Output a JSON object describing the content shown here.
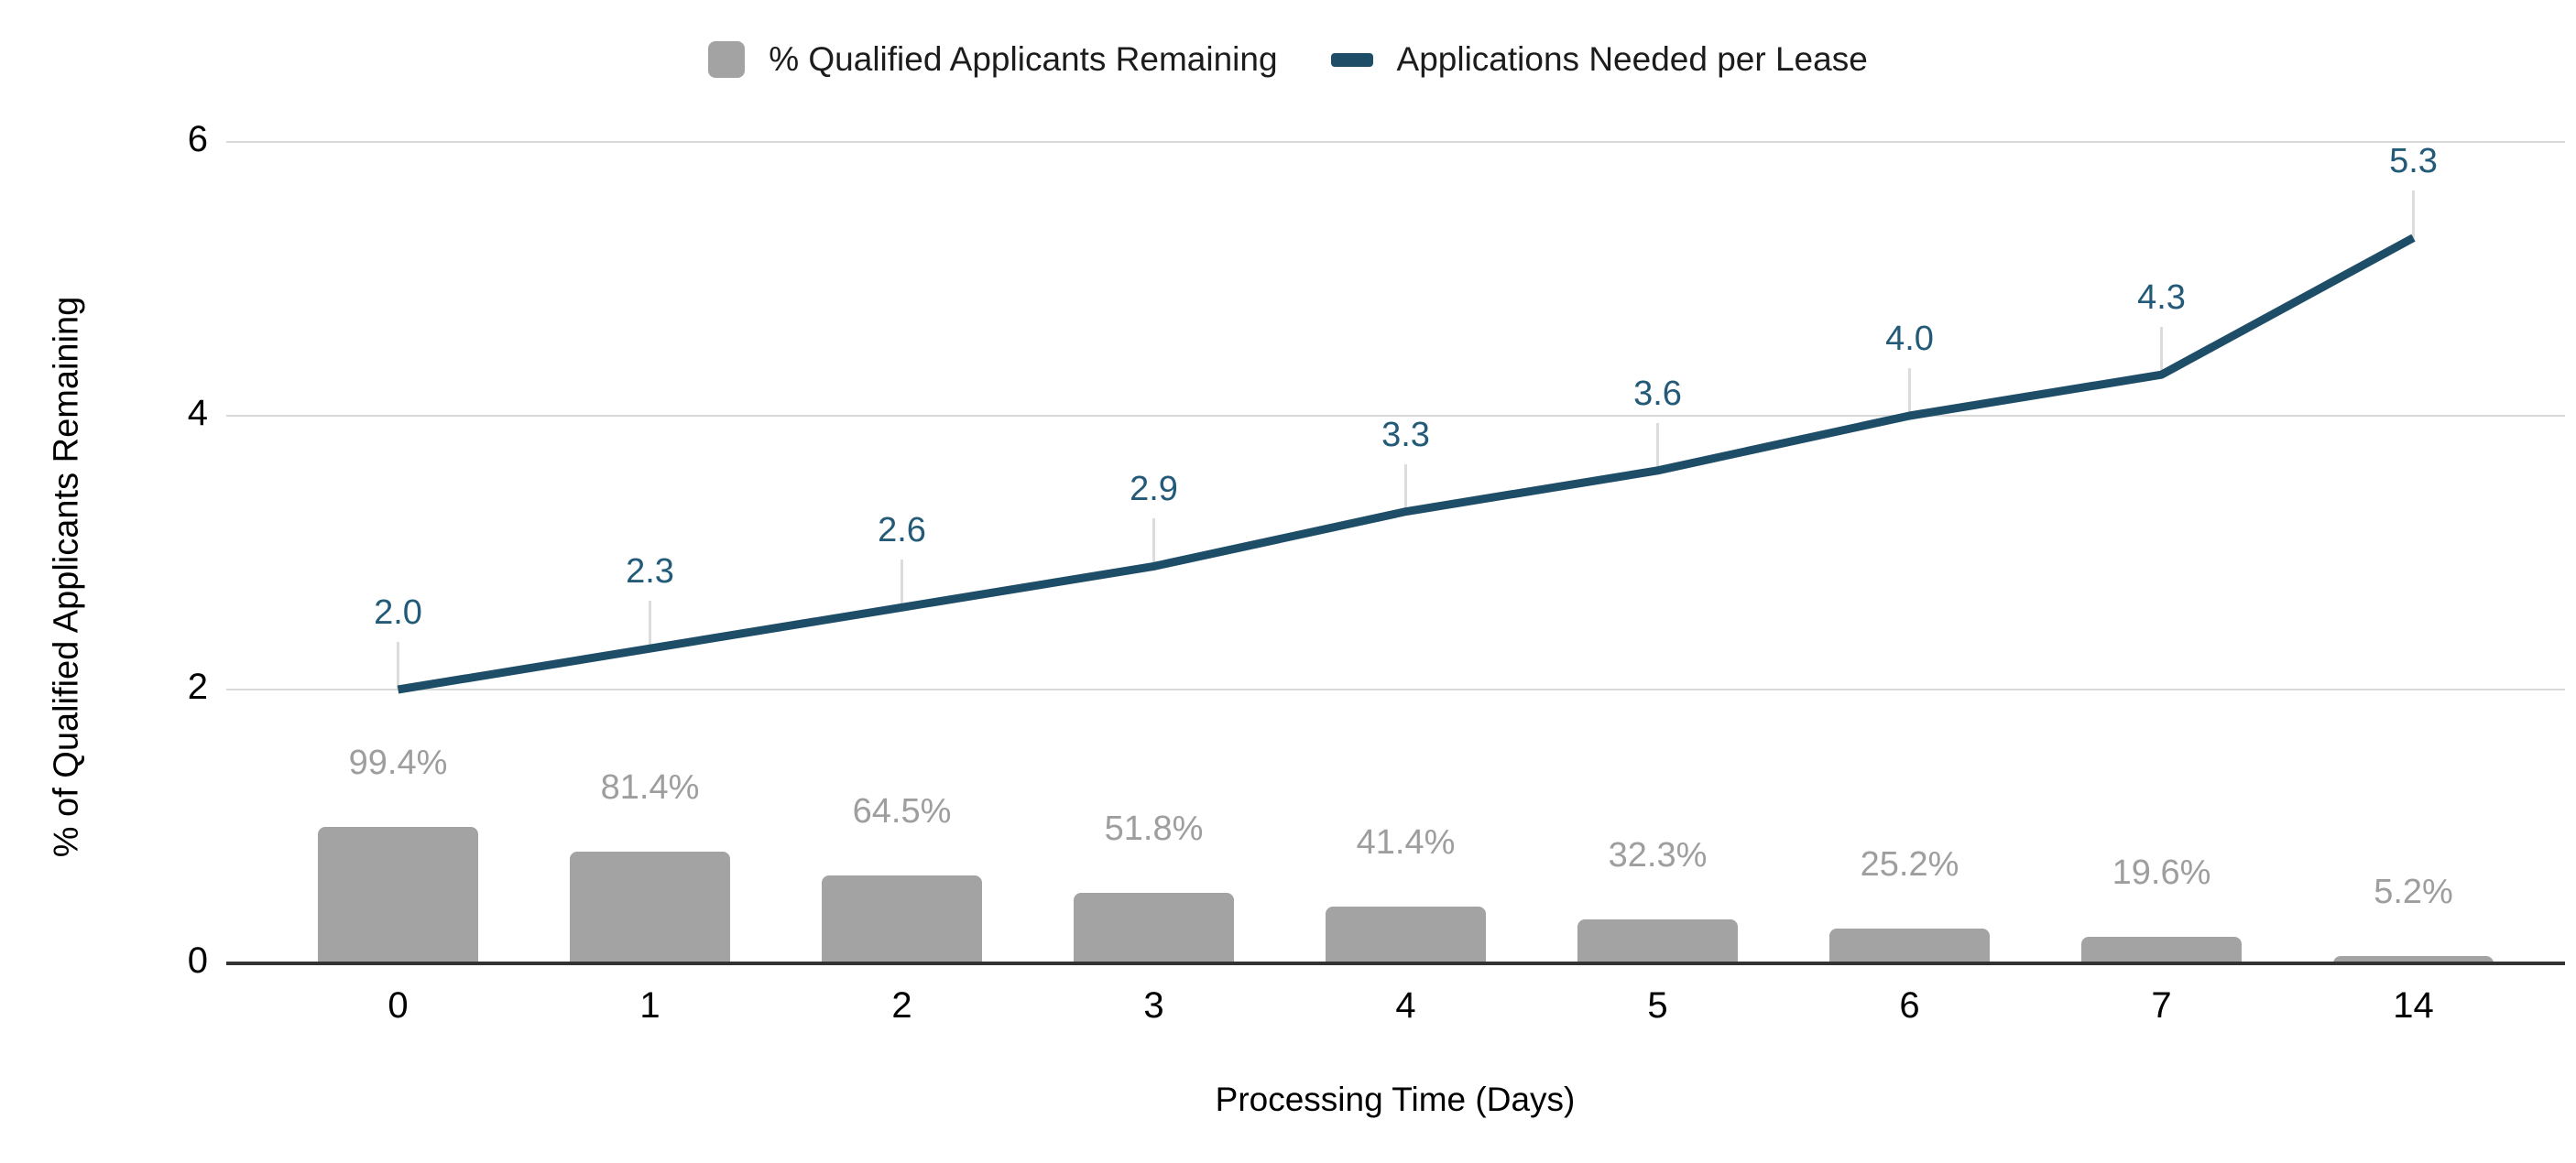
{
  "legend": {
    "items": [
      {
        "label": "% Qualified Applicants Remaining",
        "swatch": "bar-swatch-icon",
        "color": "#a3a3a3"
      },
      {
        "label": "Applications Needed per Lease",
        "swatch": "line-swatch-icon",
        "color": "#1e4d68"
      }
    ]
  },
  "chart_data": {
    "type": "bar",
    "categories": [
      "0",
      "1",
      "2",
      "3",
      "4",
      "5",
      "6",
      "7",
      "14"
    ],
    "series": [
      {
        "name": "% Qualified Applicants Remaining",
        "type": "bar",
        "values": [
          99.4,
          81.4,
          64.5,
          51.8,
          41.4,
          32.3,
          25.2,
          19.6,
          5.2
        ],
        "value_labels": [
          "99.4%",
          "81.4%",
          "64.5%",
          "51.8%",
          "41.4%",
          "32.3%",
          "25.2%",
          "19.6%",
          "5.2%"
        ],
        "plotted_as": "percent value divided by 100 on the 0-6 axis",
        "color": "#a3a3a3",
        "label_color": "#9e9e9e"
      },
      {
        "name": "Applications Needed per Lease",
        "type": "line",
        "values": [
          2.0,
          2.3,
          2.6,
          2.9,
          3.3,
          3.6,
          4.0,
          4.3,
          5.3
        ],
        "value_labels": [
          "2.0",
          "2.3",
          "2.6",
          "2.9",
          "3.3",
          "3.6",
          "4.0",
          "4.3",
          "5.3"
        ],
        "color": "#1e4d68",
        "label_color": "#235a78"
      }
    ],
    "title": "",
    "xlabel": "Processing Time (Days)",
    "ylabel": "% of Qualified Applicants Remaining",
    "ylim": [
      0,
      6
    ],
    "y_ticks": [
      "0",
      "2",
      "4",
      "6"
    ],
    "grid": true,
    "legend_position": "top",
    "style": {
      "grid_color": "#d9d9d9",
      "baseline_color": "#333333",
      "leader_tick_color": "#dcdcdc",
      "tick_label_color": "#000000"
    }
  }
}
